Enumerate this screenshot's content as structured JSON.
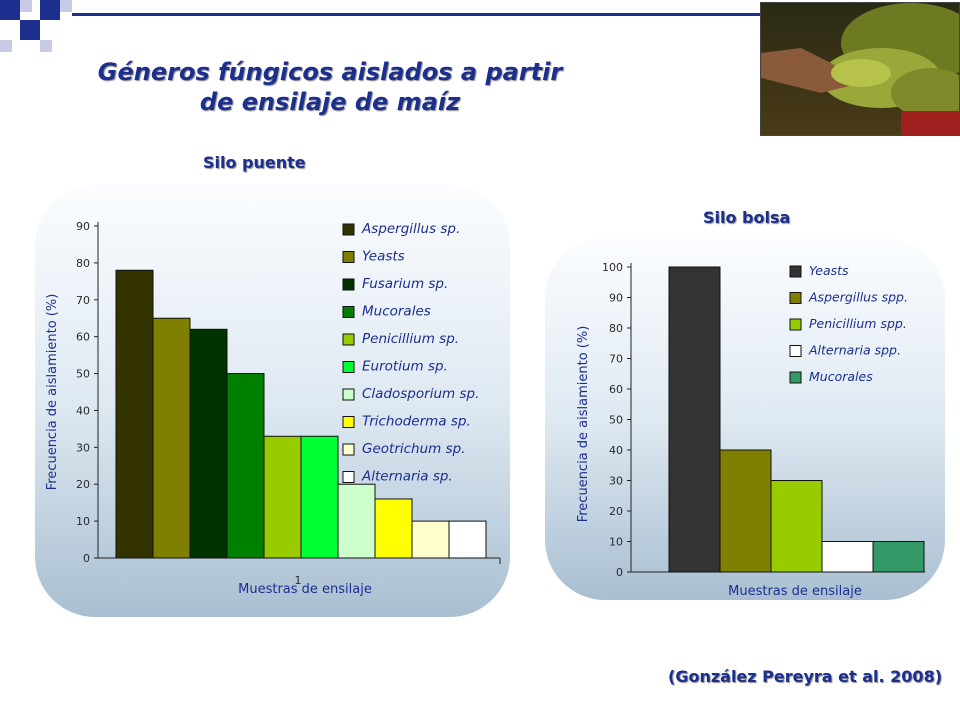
{
  "slide": {
    "title_line1": "Géneros fúngicos aislados a partir",
    "title_line2": "de ensilaje de maíz",
    "citation": "(González Pereyra et al. 2008)"
  },
  "colors": {
    "title": "#1c2f8f",
    "corner_dark": "#1c2f8f",
    "corner_light": "#c7cbe6"
  },
  "chart_data": [
    {
      "type": "bar",
      "subtitle": "Silo puente",
      "xlabel": "Muestras de ensilaje",
      "ylabel": "Frecuencia de aislamiento (%)",
      "category_label": "1",
      "ylim": [
        0,
        90
      ],
      "yticks": [
        0,
        10,
        20,
        30,
        40,
        50,
        60,
        70,
        80,
        90
      ],
      "legend_position": "right",
      "series": [
        {
          "name": "Aspergillus sp.",
          "value": 78,
          "color": "#333300"
        },
        {
          "name": "Yeasts",
          "value": 65,
          "color": "#808000"
        },
        {
          "name": "Fusarium sp.",
          "value": 62,
          "color": "#003300"
        },
        {
          "name": "Mucorales",
          "value": 50,
          "color": "#008000"
        },
        {
          "name": "Penicillium sp.",
          "value": 33,
          "color": "#99cc00"
        },
        {
          "name": "Eurotium sp.",
          "value": 33,
          "color": "#00ff33"
        },
        {
          "name": "Cladosporium sp.",
          "value": 20,
          "color": "#ccffcc"
        },
        {
          "name": "Trichoderma sp.",
          "value": 16,
          "color": "#ffff00"
        },
        {
          "name": "Geotrichum sp.",
          "value": 10,
          "color": "#ffffcc"
        },
        {
          "name": "Alternaria sp.",
          "value": 10,
          "color": "#ffffff"
        }
      ]
    },
    {
      "type": "bar",
      "subtitle": "Silo bolsa",
      "xlabel": "Muestras de ensilaje",
      "ylabel": "Frecuencia de aislamiento (%)",
      "ylim": [
        0,
        100
      ],
      "yticks": [
        0,
        10,
        20,
        30,
        40,
        50,
        60,
        70,
        80,
        90,
        100
      ],
      "legend_position": "right",
      "series": [
        {
          "name": "Yeasts",
          "value": 100,
          "color": "#333333"
        },
        {
          "name": "Aspergillus spp.",
          "value": 40,
          "color": "#808000"
        },
        {
          "name": "Penicillium spp.",
          "value": 30,
          "color": "#99cc00"
        },
        {
          "name": "Alternaria spp.",
          "value": 10,
          "color": "#ffffff"
        },
        {
          "name": "Mucorales",
          "value": 10,
          "color": "#339966"
        }
      ]
    }
  ]
}
